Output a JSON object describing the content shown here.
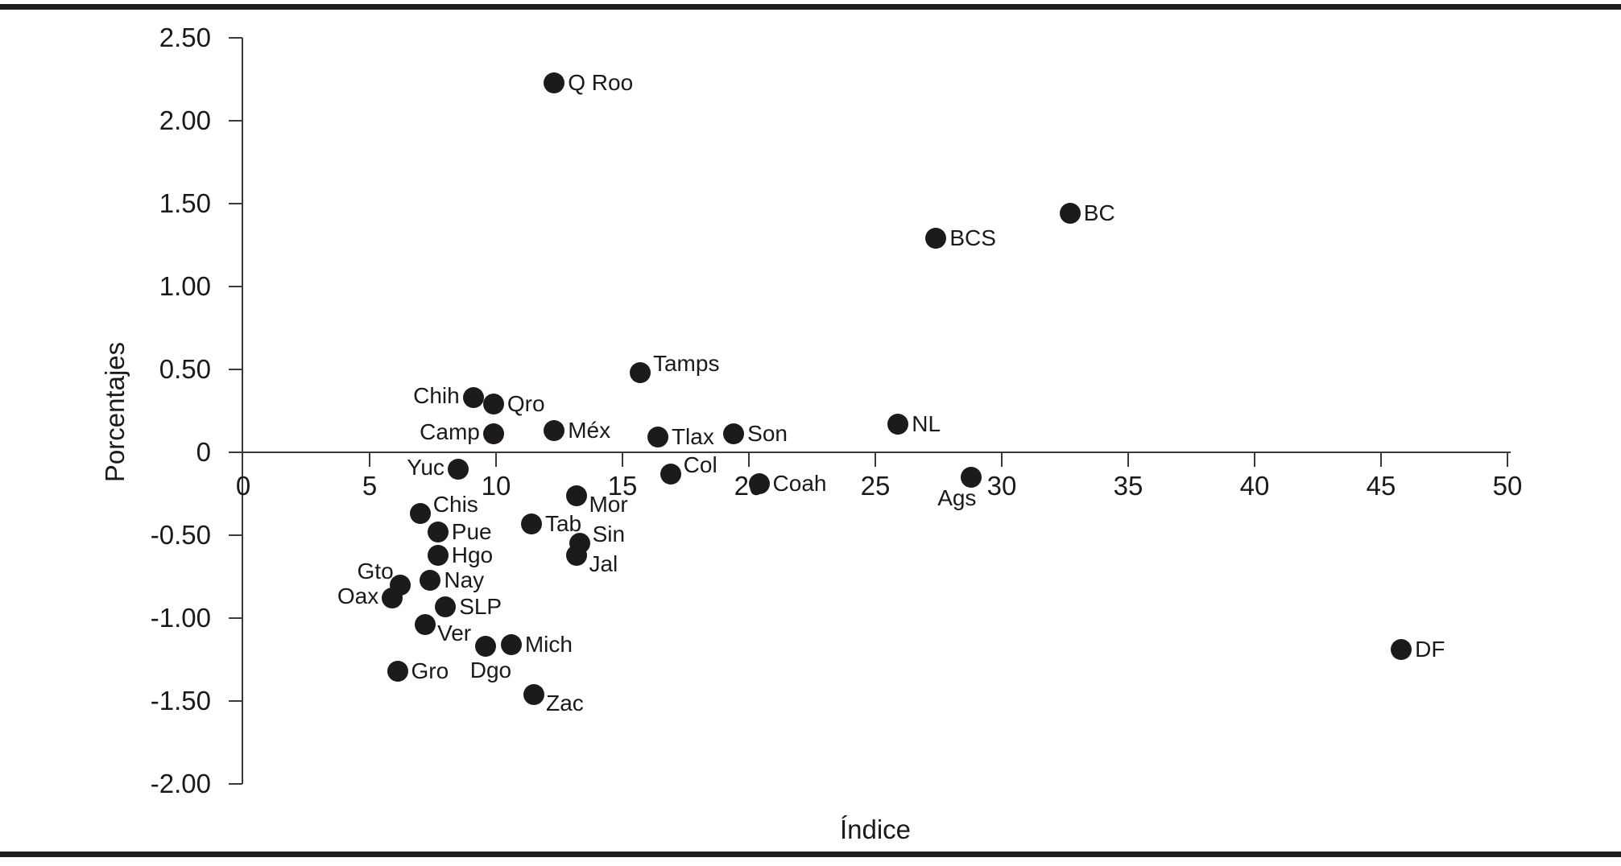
{
  "page": {
    "background": "#ffffff",
    "frame_color": "#1e1e1e",
    "axis_color": "#3a3a3a",
    "text_color": "#1a1a1a"
  },
  "chart_data": {
    "type": "scatter",
    "title": "",
    "xlabel": "Índice",
    "ylabel": "Porcentajes",
    "xlim": [
      0,
      50
    ],
    "ylim": [
      -2.0,
      2.5
    ],
    "grid": false,
    "legend": false,
    "marker_color": "#1c1a1b",
    "xticks": [
      {
        "value": 0,
        "label": "0"
      },
      {
        "value": 5,
        "label": "5"
      },
      {
        "value": 10,
        "label": "10"
      },
      {
        "value": 15,
        "label": "15"
      },
      {
        "value": 20,
        "label": "20"
      },
      {
        "value": 25,
        "label": "25"
      },
      {
        "value": 30,
        "label": "30"
      },
      {
        "value": 35,
        "label": "35"
      },
      {
        "value": 40,
        "label": "40"
      },
      {
        "value": 45,
        "label": "45"
      },
      {
        "value": 50,
        "label": "50"
      }
    ],
    "yticks": [
      {
        "value": 2.5,
        "label": "2.50"
      },
      {
        "value": 2.0,
        "label": "2.00"
      },
      {
        "value": 1.5,
        "label": "1.50"
      },
      {
        "value": 1.0,
        "label": "1.00"
      },
      {
        "value": 0.5,
        "label": "0.50"
      },
      {
        "value": 0.0,
        "label": "0"
      },
      {
        "value": -0.5,
        "label": "-0.50"
      },
      {
        "value": -1.0,
        "label": "-1.00"
      },
      {
        "value": -1.5,
        "label": "-1.50"
      },
      {
        "value": -2.0,
        "label": "-2.00"
      }
    ],
    "points": [
      {
        "label": "Q Roo",
        "x": 12.3,
        "y": 2.23,
        "side": "right"
      },
      {
        "label": "BC",
        "x": 32.7,
        "y": 1.44,
        "side": "right"
      },
      {
        "label": "BCS",
        "x": 27.4,
        "y": 1.29,
        "side": "right"
      },
      {
        "label": "Tamps",
        "x": 15.7,
        "y": 0.48,
        "side": "right-up"
      },
      {
        "label": "NL",
        "x": 25.9,
        "y": 0.17,
        "side": "right"
      },
      {
        "label": "Chih",
        "x": 9.1,
        "y": 0.33,
        "side": "left"
      },
      {
        "label": "Qro",
        "x": 9.9,
        "y": 0.29,
        "side": "right"
      },
      {
        "label": "Camp",
        "x": 9.9,
        "y": 0.11,
        "side": "left"
      },
      {
        "label": "Méx",
        "x": 12.3,
        "y": 0.13,
        "side": "right"
      },
      {
        "label": "Tlax",
        "x": 16.4,
        "y": 0.09,
        "side": "right"
      },
      {
        "label": "Son",
        "x": 19.4,
        "y": 0.11,
        "side": "right"
      },
      {
        "label": "Yuc",
        "x": 8.5,
        "y": -0.1,
        "side": "left"
      },
      {
        "label": "Col",
        "x": 16.9,
        "y": -0.13,
        "side": "right-up"
      },
      {
        "label": "Ags",
        "x": 28.8,
        "y": -0.15,
        "side": "below-left"
      },
      {
        "label": "Coah",
        "x": 20.4,
        "y": -0.19,
        "side": "right"
      },
      {
        "label": "Mor",
        "x": 13.2,
        "y": -0.26,
        "side": "right-down"
      },
      {
        "label": "Chis",
        "x": 7.0,
        "y": -0.37,
        "side": "right-up"
      },
      {
        "label": "Tab",
        "x": 11.4,
        "y": -0.43,
        "side": "right"
      },
      {
        "label": "Pue",
        "x": 7.7,
        "y": -0.48,
        "side": "right"
      },
      {
        "label": "Sin",
        "x": 13.3,
        "y": -0.55,
        "side": "right-up"
      },
      {
        "label": "Hgo",
        "x": 7.7,
        "y": -0.62,
        "side": "right"
      },
      {
        "label": "Jal",
        "x": 13.2,
        "y": -0.62,
        "side": "right-down"
      },
      {
        "label": "Nay",
        "x": 7.4,
        "y": -0.77,
        "side": "right"
      },
      {
        "label": "Gto",
        "x": 6.2,
        "y": -0.8,
        "side": "above-left"
      },
      {
        "label": "Oax",
        "x": 5.9,
        "y": -0.88,
        "side": "left"
      },
      {
        "label": "SLP",
        "x": 8.0,
        "y": -0.93,
        "side": "right"
      },
      {
        "label": "Ver",
        "x": 7.2,
        "y": -1.04,
        "side": "right-down"
      },
      {
        "label": "Mich",
        "x": 10.6,
        "y": -1.16,
        "side": "right"
      },
      {
        "label": "Dgo",
        "x": 9.6,
        "y": -1.17,
        "side": "below"
      },
      {
        "label": "Gro",
        "x": 6.1,
        "y": -1.32,
        "side": "right"
      },
      {
        "label": "Zac",
        "x": 11.5,
        "y": -1.46,
        "side": "right-down"
      },
      {
        "label": "DF",
        "x": 45.8,
        "y": -1.19,
        "side": "right"
      }
    ]
  }
}
